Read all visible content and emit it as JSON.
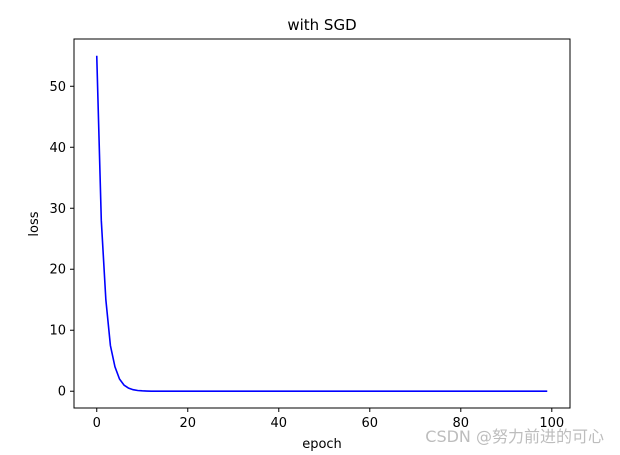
{
  "chart_data": {
    "type": "line",
    "title": "with SGD",
    "xlabel": "epoch",
    "ylabel": "loss",
    "xlim": [
      -5,
      104
    ],
    "ylim": [
      -2.75,
      57.75
    ],
    "xticks": [
      0,
      20,
      40,
      60,
      80,
      100
    ],
    "yticks": [
      0,
      10,
      20,
      30,
      40,
      50
    ],
    "grid": false,
    "series": [
      {
        "color": "#0000ff",
        "x": [
          0,
          1,
          2,
          3,
          4,
          5,
          6,
          7,
          8,
          9,
          10,
          11,
          12,
          13,
          14,
          15,
          16,
          17,
          18,
          19,
          20,
          21,
          22,
          23,
          24,
          25,
          26,
          27,
          28,
          29,
          30,
          31,
          32,
          33,
          34,
          35,
          36,
          37,
          38,
          39,
          40,
          41,
          42,
          43,
          44,
          45,
          46,
          47,
          48,
          49,
          50,
          51,
          52,
          53,
          54,
          55,
          56,
          57,
          58,
          59,
          60,
          61,
          62,
          63,
          64,
          65,
          66,
          67,
          68,
          69,
          70,
          71,
          72,
          73,
          74,
          75,
          76,
          77,
          78,
          79,
          80,
          81,
          82,
          83,
          84,
          85,
          86,
          87,
          88,
          89,
          90,
          91,
          92,
          93,
          94,
          95,
          96,
          97,
          98,
          99
        ],
        "y": [
          55.0,
          28.0,
          15.0,
          7.5,
          4.0,
          2.0,
          1.0,
          0.5,
          0.25,
          0.12,
          0.06,
          0.03,
          0.015,
          0.008,
          0.004,
          0.002,
          0.001,
          0,
          0,
          0,
          0,
          0,
          0,
          0,
          0,
          0,
          0,
          0,
          0,
          0,
          0,
          0,
          0,
          0,
          0,
          0,
          0,
          0,
          0,
          0,
          0,
          0,
          0,
          0,
          0,
          0,
          0,
          0,
          0,
          0,
          0,
          0,
          0,
          0,
          0,
          0,
          0,
          0,
          0,
          0,
          0,
          0,
          0,
          0,
          0,
          0,
          0,
          0,
          0,
          0,
          0,
          0,
          0,
          0,
          0,
          0,
          0,
          0,
          0,
          0,
          0,
          0,
          0,
          0,
          0,
          0,
          0,
          0,
          0,
          0,
          0,
          0,
          0,
          0,
          0,
          0,
          0,
          0,
          0,
          0
        ]
      }
    ]
  },
  "watermark": "CSDN @努力前进的可心"
}
